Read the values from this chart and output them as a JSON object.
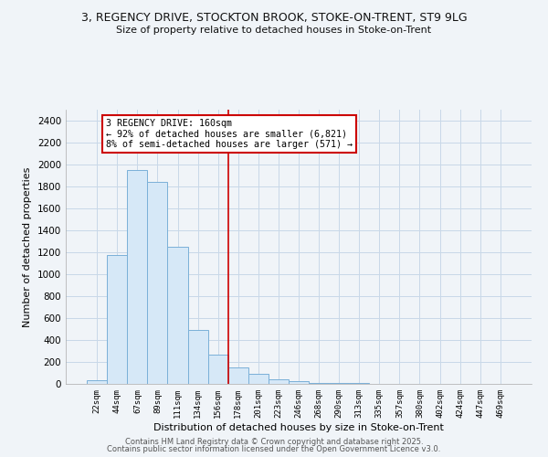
{
  "title_line1": "3, REGENCY DRIVE, STOCKTON BROOK, STOKE-ON-TRENT, ST9 9LG",
  "title_line2": "Size of property relative to detached houses in Stoke-on-Trent",
  "xlabel": "Distribution of detached houses by size in Stoke-on-Trent",
  "ylabel": "Number of detached properties",
  "categories": [
    "22sqm",
    "44sqm",
    "67sqm",
    "89sqm",
    "111sqm",
    "134sqm",
    "156sqm",
    "178sqm",
    "201sqm",
    "223sqm",
    "246sqm",
    "268sqm",
    "290sqm",
    "313sqm",
    "335sqm",
    "357sqm",
    "380sqm",
    "402sqm",
    "424sqm",
    "447sqm",
    "469sqm"
  ],
  "values": [
    30,
    1175,
    1950,
    1840,
    1250,
    490,
    270,
    150,
    95,
    40,
    22,
    12,
    8,
    6,
    4,
    3,
    2,
    2,
    1,
    1,
    1
  ],
  "bar_color": "#d6e8f7",
  "bar_edge_color": "#7ab0d8",
  "vline_x": 6.5,
  "vline_color": "#cc0000",
  "annotation_text": "3 REGENCY DRIVE: 160sqm\n← 92% of detached houses are smaller (6,821)\n8% of semi-detached houses are larger (571) →",
  "ylim": [
    0,
    2500
  ],
  "yticks": [
    0,
    200,
    400,
    600,
    800,
    1000,
    1200,
    1400,
    1600,
    1800,
    2000,
    2200,
    2400
  ],
  "footer1": "Contains HM Land Registry data © Crown copyright and database right 2025.",
  "footer2": "Contains public sector information licensed under the Open Government Licence v3.0.",
  "background_color": "#f0f4f8",
  "grid_color": "#c8d8e8"
}
